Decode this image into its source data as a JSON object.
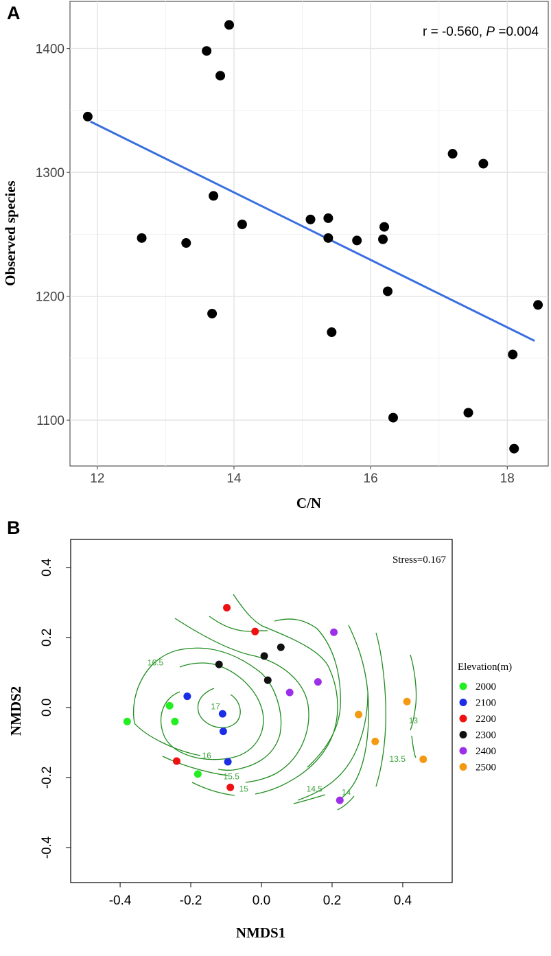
{
  "chart_data": [
    {
      "panel": "A",
      "type": "scatter",
      "xlabel": "C/N",
      "ylabel": "Observed species",
      "annotation": {
        "r_text": "r = -0.560, ",
        "p_symbol": "P",
        "p_text": " =0.004"
      },
      "xlim": [
        11.6,
        18.6
      ],
      "ylim": [
        1063,
        1438
      ],
      "xticks": [
        12,
        14,
        16,
        18
      ],
      "yticks": [
        1100,
        1200,
        1300,
        1400
      ],
      "grid_major_x": [
        12,
        14,
        16,
        18
      ],
      "grid_minor_x": [
        13,
        15,
        17
      ],
      "grid_major_y": [
        1100,
        1200,
        1300,
        1400
      ],
      "grid_minor_y": [
        1150,
        1250,
        1350
      ],
      "points": [
        {
          "x": 11.86,
          "y": 1345
        },
        {
          "x": 12.65,
          "y": 1247
        },
        {
          "x": 13.3,
          "y": 1243
        },
        {
          "x": 13.6,
          "y": 1398
        },
        {
          "x": 13.68,
          "y": 1186
        },
        {
          "x": 13.7,
          "y": 1281
        },
        {
          "x": 13.8,
          "y": 1378
        },
        {
          "x": 13.93,
          "y": 1419
        },
        {
          "x": 14.12,
          "y": 1258
        },
        {
          "x": 15.12,
          "y": 1262
        },
        {
          "x": 15.38,
          "y": 1263
        },
        {
          "x": 15.38,
          "y": 1247
        },
        {
          "x": 15.43,
          "y": 1171
        },
        {
          "x": 15.8,
          "y": 1245
        },
        {
          "x": 16.18,
          "y": 1246
        },
        {
          "x": 16.2,
          "y": 1256
        },
        {
          "x": 16.25,
          "y": 1204
        },
        {
          "x": 16.33,
          "y": 1102
        },
        {
          "x": 17.2,
          "y": 1315
        },
        {
          "x": 17.43,
          "y": 1106
        },
        {
          "x": 17.65,
          "y": 1307
        },
        {
          "x": 18.08,
          "y": 1153
        },
        {
          "x": 18.1,
          "y": 1077
        },
        {
          "x": 18.45,
          "y": 1193
        }
      ],
      "fit_line": {
        "x": [
          11.9,
          18.4
        ],
        "y": [
          1341,
          1164
        ],
        "color": "#3a6fe0"
      }
    },
    {
      "panel": "B",
      "type": "scatter",
      "xlabel": "NMDS1",
      "ylabel": "NMDS2",
      "annotation": "Stress=0.167",
      "xlim": [
        -0.54,
        0.54
      ],
      "ylim": [
        -0.5,
        0.48
      ],
      "xticks": [
        -0.4,
        -0.2,
        0.0,
        0.2,
        0.4
      ],
      "xtick_labels": [
        "-0.4",
        "-0.2",
        "0.0",
        "0.2",
        "0.4"
      ],
      "yticks": [
        -0.4,
        -0.2,
        0.0,
        0.2,
        0.4
      ],
      "ytick_labels": [
        "-0.4",
        "-0.2",
        "0.0",
        "0.2",
        "0.4"
      ],
      "legend": {
        "title": "Elevation(m)",
        "items": [
          {
            "label": "2000",
            "color": "#22ee22"
          },
          {
            "label": "2100",
            "color": "#1a2ee6"
          },
          {
            "label": "2200",
            "color": "#ee1111"
          },
          {
            "label": "2300",
            "color": "#111111"
          },
          {
            "label": "2400",
            "color": "#9b30e8"
          },
          {
            "label": "2500",
            "color": "#f39a12"
          }
        ]
      },
      "contour_color": "#1e8c1e",
      "contour_labels": [
        {
          "text": "17",
          "x": -0.13,
          "y": -0.005
        },
        {
          "text": "16.5",
          "x": -0.3,
          "y": 0.12
        },
        {
          "text": "16",
          "x": -0.155,
          "y": -0.145
        },
        {
          "text": "15.5",
          "x": -0.085,
          "y": -0.205
        },
        {
          "text": "15",
          "x": -0.05,
          "y": -0.24
        },
        {
          "text": "14.5",
          "x": 0.15,
          "y": -0.24
        },
        {
          "text": "14",
          "x": 0.24,
          "y": -0.25
        },
        {
          "text": "13.5",
          "x": 0.385,
          "y": -0.155
        },
        {
          "text": "13",
          "x": 0.43,
          "y": -0.045
        }
      ],
      "points": [
        {
          "x": -0.38,
          "y": -0.04,
          "group": "2000"
        },
        {
          "x": -0.26,
          "y": 0.005,
          "group": "2000"
        },
        {
          "x": -0.245,
          "y": -0.04,
          "group": "2000"
        },
        {
          "x": -0.18,
          "y": -0.19,
          "group": "2000"
        },
        {
          "x": -0.21,
          "y": 0.032,
          "group": "2100"
        },
        {
          "x": -0.11,
          "y": -0.018,
          "group": "2100"
        },
        {
          "x": -0.108,
          "y": -0.068,
          "group": "2100"
        },
        {
          "x": -0.095,
          "y": -0.155,
          "group": "2100"
        },
        {
          "x": -0.24,
          "y": -0.153,
          "group": "2200"
        },
        {
          "x": -0.098,
          "y": 0.285,
          "group": "2200"
        },
        {
          "x": -0.018,
          "y": 0.217,
          "group": "2200"
        },
        {
          "x": -0.088,
          "y": -0.228,
          "group": "2200"
        },
        {
          "x": -0.12,
          "y": 0.123,
          "group": "2300"
        },
        {
          "x": 0.008,
          "y": 0.147,
          "group": "2300"
        },
        {
          "x": 0.018,
          "y": 0.078,
          "group": "2300"
        },
        {
          "x": 0.055,
          "y": 0.172,
          "group": "2300"
        },
        {
          "x": 0.08,
          "y": 0.043,
          "group": "2400"
        },
        {
          "x": 0.16,
          "y": 0.073,
          "group": "2400"
        },
        {
          "x": 0.205,
          "y": 0.215,
          "group": "2400"
        },
        {
          "x": 0.222,
          "y": -0.265,
          "group": "2400"
        },
        {
          "x": 0.275,
          "y": -0.02,
          "group": "2500"
        },
        {
          "x": 0.322,
          "y": -0.097,
          "group": "2500"
        },
        {
          "x": 0.412,
          "y": 0.017,
          "group": "2500"
        },
        {
          "x": 0.458,
          "y": -0.148,
          "group": "2500"
        }
      ]
    }
  ]
}
